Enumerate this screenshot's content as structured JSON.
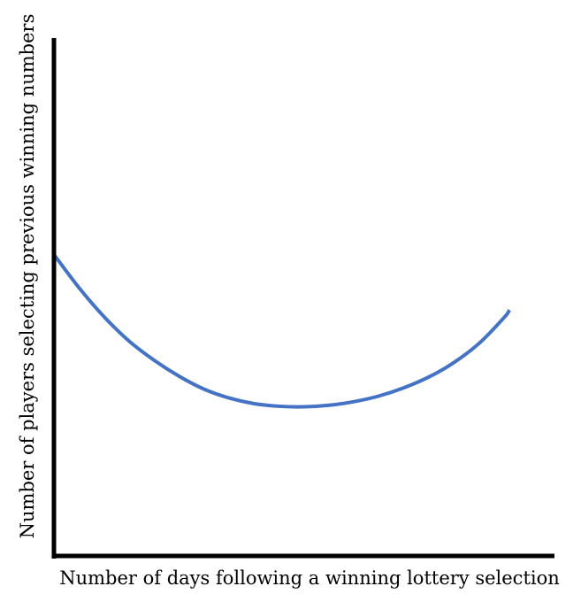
{
  "chart_data": {
    "type": "line",
    "title": "",
    "xlabel": "Number of days following a winning lottery selection",
    "ylabel": "Number of players selecting previous winning numbers",
    "grid": false,
    "legend": "none",
    "series": [
      {
        "color": "#4472c4",
        "points": [
          {
            "x": 0.0,
            "y": 0.582
          },
          {
            "x": 0.05,
            "y": 0.518
          },
          {
            "x": 0.1,
            "y": 0.462
          },
          {
            "x": 0.15,
            "y": 0.415
          },
          {
            "x": 0.2,
            "y": 0.378
          },
          {
            "x": 0.25,
            "y": 0.347
          },
          {
            "x": 0.3,
            "y": 0.322
          },
          {
            "x": 0.35,
            "y": 0.305
          },
          {
            "x": 0.4,
            "y": 0.294
          },
          {
            "x": 0.45,
            "y": 0.289
          },
          {
            "x": 0.5,
            "y": 0.288
          },
          {
            "x": 0.55,
            "y": 0.291
          },
          {
            "x": 0.6,
            "y": 0.298
          },
          {
            "x": 0.65,
            "y": 0.309
          },
          {
            "x": 0.7,
            "y": 0.325
          },
          {
            "x": 0.75,
            "y": 0.346
          },
          {
            "x": 0.8,
            "y": 0.374
          },
          {
            "x": 0.85,
            "y": 0.411
          },
          {
            "x": 0.9,
            "y": 0.461
          },
          {
            "x": 0.91,
            "y": 0.475
          }
        ]
      }
    ],
    "xlim": [
      0,
      1
    ],
    "ylim": [
      0,
      1
    ],
    "axis_color": "#000000"
  }
}
